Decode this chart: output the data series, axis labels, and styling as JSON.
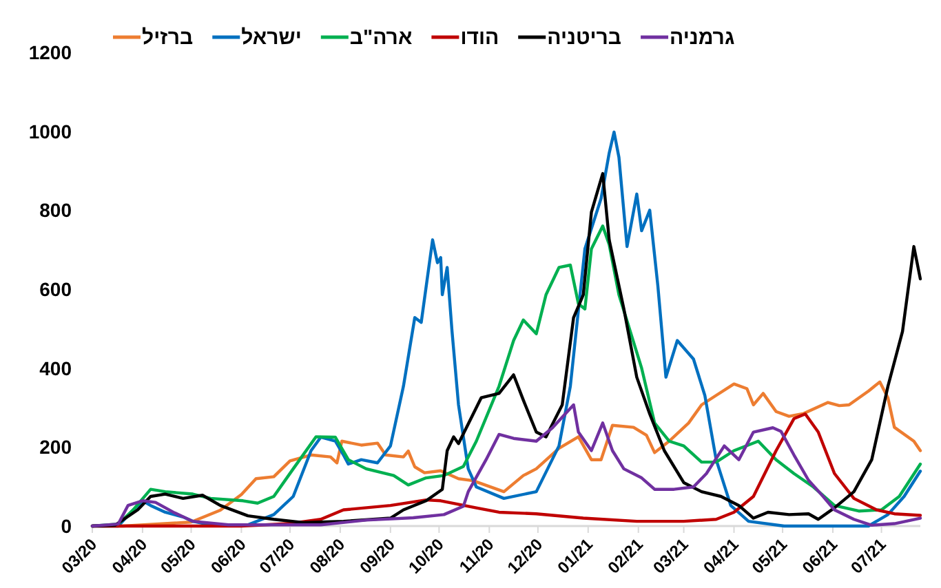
{
  "chart_data": {
    "type": "line",
    "xlim": [
      "2020-03-01",
      "2021-07-25"
    ],
    "ylim": [
      0,
      1200
    ],
    "yticks": [
      0,
      200,
      400,
      600,
      800,
      1000,
      1200
    ],
    "xticks": [
      {
        "value": "2020-03-01",
        "label": "03/20"
      },
      {
        "value": "2020-04-01",
        "label": "04/20"
      },
      {
        "value": "2020-05-01",
        "label": "05/20"
      },
      {
        "value": "2020-06-01",
        "label": "06/20"
      },
      {
        "value": "2020-07-01",
        "label": "07/20"
      },
      {
        "value": "2020-08-01",
        "label": "08/20"
      },
      {
        "value": "2020-09-01",
        "label": "09/20"
      },
      {
        "value": "2020-10-01",
        "label": "10/20"
      },
      {
        "value": "2020-11-01",
        "label": "11/20"
      },
      {
        "value": "2020-12-01",
        "label": "12/20"
      },
      {
        "value": "2021-01-01",
        "label": "01/21"
      },
      {
        "value": "2021-02-01",
        "label": "02/21"
      },
      {
        "value": "2021-03-01",
        "label": "03/21"
      },
      {
        "value": "2021-04-01",
        "label": "04/21"
      },
      {
        "value": "2021-05-01",
        "label": "05/21"
      },
      {
        "value": "2021-06-01",
        "label": "06/21"
      },
      {
        "value": "2021-07-01",
        "label": "07/21"
      }
    ],
    "legend": "top",
    "series": [
      {
        "name": "ברזיל",
        "color": "#ed7d31",
        "x": [
          "2020-03-01",
          "2020-03-20",
          "2020-05-01",
          "2020-05-19",
          "2020-06-01",
          "2020-06-10",
          "2020-06-21",
          "2020-07-01",
          "2020-07-14",
          "2020-07-26",
          "2020-07-30",
          "2020-08-02",
          "2020-08-14",
          "2020-08-24",
          "2020-08-29",
          "2020-09-09",
          "2020-09-12",
          "2020-09-16",
          "2020-09-22",
          "2020-10-02",
          "2020-10-13",
          "2020-10-22",
          "2020-11-10",
          "2020-11-22",
          "2020-11-30",
          "2020-12-14",
          "2020-12-26",
          "2021-01-03",
          "2021-01-09",
          "2021-01-16",
          "2021-01-29",
          "2021-02-06",
          "2021-02-11",
          "2021-02-20",
          "2021-03-04",
          "2021-03-12",
          "2021-03-21",
          "2021-04-01",
          "2021-04-09",
          "2021-04-13",
          "2021-04-19",
          "2021-04-27",
          "2021-05-05",
          "2021-05-14",
          "2021-05-29",
          "2021-06-05",
          "2021-06-11",
          "2021-06-23",
          "2021-06-30",
          "2021-07-05",
          "2021-07-09",
          "2021-07-21",
          "2021-07-25"
        ],
        "values": [
          0,
          0,
          10,
          40,
          80,
          120,
          125,
          165,
          180,
          175,
          160,
          215,
          205,
          210,
          180,
          175,
          190,
          150,
          135,
          140,
          120,
          115,
          87,
          128,
          145,
          197,
          226,
          168,
          168,
          255,
          250,
          230,
          186,
          215,
          261,
          307,
          331,
          360,
          348,
          307,
          336,
          290,
          278,
          285,
          313,
          305,
          307,
          342,
          365,
          325,
          250,
          215,
          191
        ]
      },
      {
        "name": "ישראל",
        "color": "#0070c0",
        "x": [
          "2020-03-01",
          "2020-03-17",
          "2020-03-26",
          "2020-04-01",
          "2020-04-06",
          "2020-04-15",
          "2020-04-26",
          "2020-05-02",
          "2020-05-13",
          "2020-06-05",
          "2020-06-21",
          "2020-07-03",
          "2020-07-14",
          "2020-07-20",
          "2020-07-29",
          "2020-08-03",
          "2020-08-06",
          "2020-08-14",
          "2020-08-24",
          "2020-09-01",
          "2020-09-09",
          "2020-09-16",
          "2020-09-20",
          "2020-09-27",
          "2020-09-30",
          "2020-10-02",
          "2020-10-03",
          "2020-10-06",
          "2020-10-09",
          "2020-10-13",
          "2020-10-19",
          "2020-10-24",
          "2020-11-10",
          "2020-11-30",
          "2020-12-14",
          "2020-12-21",
          "2020-12-30",
          "2021-01-09",
          "2021-01-14",
          "2021-01-17",
          "2021-01-20",
          "2021-01-25",
          "2021-01-31",
          "2021-02-03",
          "2021-02-08",
          "2021-02-13",
          "2021-02-18",
          "2021-02-25",
          "2021-03-07",
          "2021-03-14",
          "2021-03-21",
          "2021-03-30",
          "2021-04-10",
          "2021-05-02",
          "2021-06-23",
          "2021-07-05",
          "2021-07-15",
          "2021-07-25"
        ],
        "values": [
          0,
          0,
          40,
          64,
          52,
          35,
          23,
          12,
          3,
          3,
          29,
          75,
          191,
          225,
          215,
          180,
          157,
          168,
          160,
          203,
          354,
          528,
          516,
          725,
          667,
          680,
          586,
          655,
          493,
          307,
          145,
          99,
          70,
          87,
          203,
          354,
          702,
          830,
          945,
          998,
          934,
          708,
          841,
          748,
          800,
          609,
          377,
          470,
          423,
          331,
          168,
          52,
          12,
          0,
          0,
          29,
          75,
          139
        ]
      },
      {
        "name": "ארה\"ב",
        "color": "#00b050",
        "x": [
          "2020-03-01",
          "2020-03-17",
          "2020-03-26",
          "2020-04-06",
          "2020-04-15",
          "2020-05-02",
          "2020-05-13",
          "2020-06-02",
          "2020-06-11",
          "2020-06-21",
          "2020-07-03",
          "2020-07-17",
          "2020-07-29",
          "2020-08-06",
          "2020-08-17",
          "2020-09-03",
          "2020-09-12",
          "2020-09-23",
          "2020-10-04",
          "2020-10-16",
          "2020-10-24",
          "2020-11-07",
          "2020-11-16",
          "2020-11-22",
          "2020-11-30",
          "2020-12-06",
          "2020-12-14",
          "2020-12-21",
          "2020-12-26",
          "2020-12-30",
          "2021-01-03",
          "2021-01-10",
          "2021-01-14",
          "2021-01-20",
          "2021-01-27",
          "2021-02-03",
          "2021-02-11",
          "2021-02-20",
          "2021-03-01",
          "2021-03-12",
          "2021-03-21",
          "2021-04-01",
          "2021-04-16",
          "2021-04-27",
          "2021-05-08",
          "2021-05-20",
          "2021-06-02",
          "2021-06-17",
          "2021-07-01",
          "2021-07-12",
          "2021-07-25"
        ],
        "values": [
          0,
          5,
          40,
          93,
          87,
          81,
          70,
          64,
          58,
          75,
          145,
          226,
          225,
          168,
          145,
          128,
          104,
          122,
          128,
          151,
          215,
          354,
          470,
          522,
          487,
          586,
          655,
          661,
          563,
          550,
          702,
          760,
          713,
          586,
          493,
          400,
          261,
          215,
          203,
          162,
          162,
          191,
          215,
          168,
          133,
          99,
          52,
          38,
          41,
          75,
          157
        ]
      },
      {
        "name": "הודו",
        "color": "#c00000",
        "x": [
          "2020-03-01",
          "2020-06-01",
          "2020-06-30",
          "2020-07-20",
          "2020-08-03",
          "2020-09-01",
          "2020-09-23",
          "2020-10-02",
          "2020-10-24",
          "2020-11-07",
          "2020-11-30",
          "2020-12-29",
          "2021-01-31",
          "2021-03-01",
          "2021-03-21",
          "2021-04-01",
          "2021-04-13",
          "2021-04-27",
          "2021-05-08",
          "2021-05-15",
          "2021-05-23",
          "2021-06-02",
          "2021-06-14",
          "2021-06-28",
          "2021-07-09",
          "2021-07-25"
        ],
        "values": [
          0,
          0,
          6,
          17,
          41,
          52,
          66,
          64,
          46,
          35,
          31,
          20,
          12,
          12,
          17,
          35,
          75,
          191,
          272,
          284,
          238,
          133,
          70,
          41,
          31,
          27
        ]
      },
      {
        "name": "בריטניה",
        "color": "#000000",
        "x": [
          "2020-03-01",
          "2020-03-15",
          "2020-03-29",
          "2020-04-06",
          "2020-04-15",
          "2020-04-26",
          "2020-05-08",
          "2020-05-19",
          "2020-06-05",
          "2020-06-21",
          "2020-07-09",
          "2020-08-03",
          "2020-09-01",
          "2020-09-09",
          "2020-09-23",
          "2020-10-03",
          "2020-10-06",
          "2020-10-10",
          "2020-10-13",
          "2020-10-27",
          "2020-11-07",
          "2020-11-16",
          "2020-11-22",
          "2020-11-30",
          "2020-12-06",
          "2020-12-16",
          "2020-12-23",
          "2020-12-29",
          "2021-01-03",
          "2021-01-10",
          "2021-01-14",
          "2021-01-23",
          "2021-01-31",
          "2021-02-08",
          "2021-02-17",
          "2021-03-01",
          "2021-03-12",
          "2021-03-24",
          "2021-04-04",
          "2021-04-13",
          "2021-04-22",
          "2021-05-05",
          "2021-05-17",
          "2021-05-23",
          "2021-06-02",
          "2021-06-14",
          "2021-06-25",
          "2021-07-05",
          "2021-07-14",
          "2021-07-21",
          "2021-07-25"
        ],
        "values": [
          0,
          2,
          41,
          75,
          81,
          70,
          78,
          52,
          26,
          17,
          9,
          12,
          20,
          41,
          64,
          93,
          191,
          226,
          209,
          325,
          336,
          383,
          319,
          238,
          226,
          307,
          528,
          586,
          795,
          893,
          725,
          551,
          377,
          284,
          191,
          110,
          87,
          75,
          52,
          20,
          35,
          29,
          31,
          17,
          46,
          87,
          168,
          354,
          493,
          708,
          626
        ]
      },
      {
        "name": "גרמניה",
        "color": "#7030a0",
        "x": [
          "2020-03-01",
          "2020-03-17",
          "2020-03-23",
          "2020-04-01",
          "2020-04-09",
          "2020-04-20",
          "2020-05-02",
          "2020-05-24",
          "2020-07-20",
          "2020-08-17",
          "2020-09-15",
          "2020-10-04",
          "2020-10-16",
          "2020-10-19",
          "2020-10-30",
          "2020-11-07",
          "2020-11-16",
          "2020-11-30",
          "2020-12-10",
          "2020-12-23",
          "2020-12-26",
          "2021-01-03",
          "2021-01-10",
          "2021-01-16",
          "2021-01-23",
          "2021-02-03",
          "2021-02-11",
          "2021-02-23",
          "2021-03-07",
          "2021-03-15",
          "2021-03-26",
          "2021-04-04",
          "2021-04-13",
          "2021-04-25",
          "2021-04-30",
          "2021-05-08",
          "2021-05-17",
          "2021-05-26",
          "2021-06-02",
          "2021-06-14",
          "2021-06-25",
          "2021-07-09",
          "2021-07-25"
        ],
        "values": [
          0,
          5,
          52,
          64,
          60,
          35,
          12,
          3,
          3,
          15,
          21,
          29,
          50,
          87,
          168,
          232,
          222,
          215,
          249,
          307,
          238,
          191,
          261,
          191,
          145,
          122,
          93,
          93,
          99,
          133,
          203,
          168,
          238,
          249,
          240,
          180,
          116,
          75,
          41,
          17,
          2,
          6,
          20
        ]
      }
    ]
  }
}
